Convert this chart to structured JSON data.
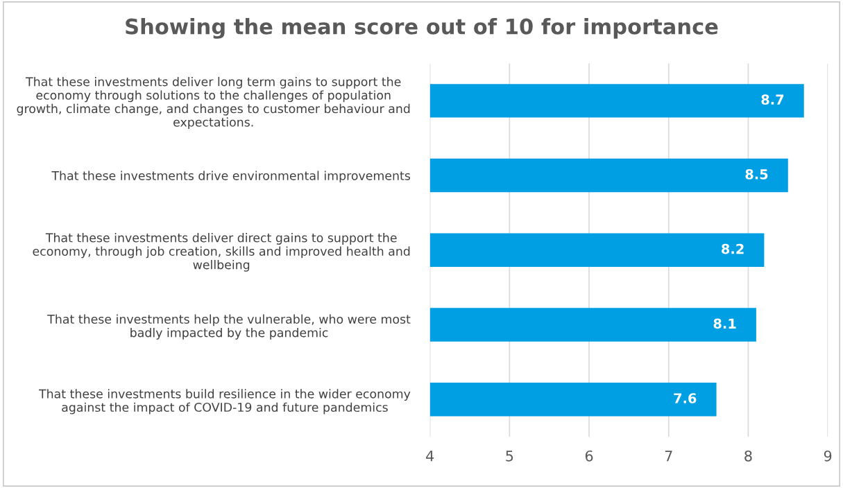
{
  "chart_data": {
    "type": "bar",
    "orientation": "horizontal",
    "title": "Showing the mean score out of 10 for importance",
    "categories": [
      "That these investments deliver long term gains to support the economy through solutions to the challenges of population growth, climate change, and changes to customer behaviour and expectations.",
      "That these investments drive environmental improvements",
      "That these investments deliver direct gains to support the economy, through job creation, skills and improved health and wellbeing",
      "That these investments help the vulnerable, who were most badly impacted by the pandemic",
      "That these investments build resilience in the wider economy against the impact of COVID-19 and future pandemics"
    ],
    "values": [
      8.7,
      8.5,
      8.2,
      8.1,
      7.6
    ],
    "color": "#009fe3",
    "xlim": [
      4,
      9
    ],
    "xticks": [
      4,
      5,
      6,
      7,
      8,
      9
    ],
    "grid": "x",
    "data_labels": true
  }
}
